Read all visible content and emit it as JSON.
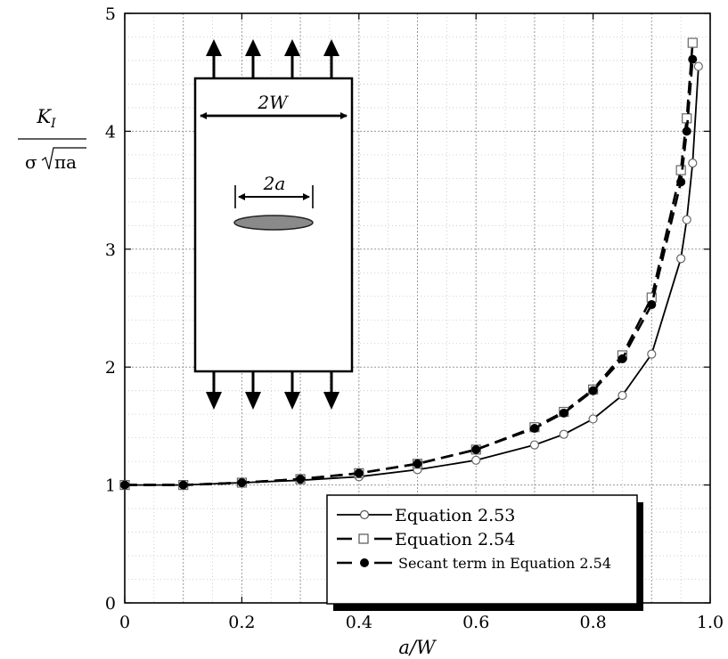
{
  "chart_data": {
    "type": "line",
    "ylabel": {
      "numerator": "K",
      "numerator_sub": "I",
      "denominator_prefix": "σ",
      "denominator_radicand": "πa"
    },
    "xlabel": "a/W",
    "xlim": [
      0,
      1.0
    ],
    "ylim": [
      0,
      5
    ],
    "x_ticks": [
      0,
      0.2,
      0.4,
      0.6,
      0.8,
      1.0
    ],
    "x_tick_labels": [
      "0",
      "0.2",
      "0.4",
      "0.6",
      "0.8",
      "1.0"
    ],
    "y_ticks": [
      0,
      1,
      2,
      3,
      4,
      5
    ],
    "y_tick_labels": [
      "0",
      "1",
      "2",
      "3",
      "4",
      "5"
    ],
    "grid": true,
    "minor_grid": true,
    "legend_position": "bottom-right",
    "series": [
      {
        "name": "Equation 2.53",
        "line": "solid",
        "marker": "open-circle",
        "points": [
          [
            0,
            1.0
          ],
          [
            0.1,
            1.0
          ],
          [
            0.2,
            1.02
          ],
          [
            0.3,
            1.04
          ],
          [
            0.4,
            1.07
          ],
          [
            0.5,
            1.13
          ],
          [
            0.6,
            1.21
          ],
          [
            0.7,
            1.34
          ],
          [
            0.75,
            1.43
          ],
          [
            0.8,
            1.56
          ],
          [
            0.85,
            1.76
          ],
          [
            0.9,
            2.11
          ],
          [
            0.95,
            2.92
          ],
          [
            0.96,
            3.25
          ],
          [
            0.97,
            3.73
          ],
          [
            0.98,
            4.55
          ]
        ]
      },
      {
        "name": "Equation 2.54",
        "line": "dashed",
        "marker": "open-square",
        "points": [
          [
            0,
            1.0
          ],
          [
            0.1,
            1.0
          ],
          [
            0.2,
            1.02
          ],
          [
            0.3,
            1.05
          ],
          [
            0.4,
            1.1
          ],
          [
            0.5,
            1.18
          ],
          [
            0.6,
            1.3
          ],
          [
            0.7,
            1.49
          ],
          [
            0.75,
            1.62
          ],
          [
            0.8,
            1.81
          ],
          [
            0.85,
            2.1
          ],
          [
            0.9,
            2.59
          ],
          [
            0.95,
            3.67
          ],
          [
            0.96,
            4.11
          ],
          [
            0.97,
            4.75
          ]
        ]
      },
      {
        "name": "Secant term in Equation 2.54",
        "line": "dashed",
        "marker": "filled-circle",
        "points": [
          [
            0,
            1.0
          ],
          [
            0.1,
            1.0
          ],
          [
            0.2,
            1.02
          ],
          [
            0.3,
            1.05
          ],
          [
            0.4,
            1.1
          ],
          [
            0.5,
            1.18
          ],
          [
            0.6,
            1.3
          ],
          [
            0.7,
            1.48
          ],
          [
            0.75,
            1.61
          ],
          [
            0.8,
            1.8
          ],
          [
            0.85,
            2.07
          ],
          [
            0.9,
            2.53
          ],
          [
            0.95,
            3.57
          ],
          [
            0.96,
            4.0
          ],
          [
            0.97,
            4.61
          ]
        ]
      }
    ],
    "inset": {
      "width_label": "2W",
      "crack_label": "2a"
    }
  }
}
